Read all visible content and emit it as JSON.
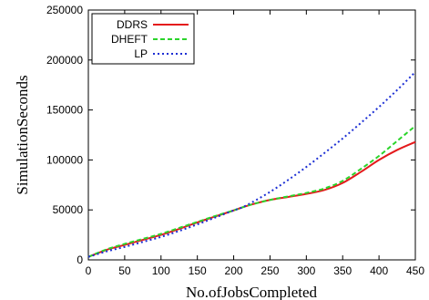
{
  "chart_data": {
    "type": "line",
    "title": "",
    "xlabel": "No.ofJobsCompleted",
    "ylabel": "SimulationSeconds",
    "xlim": [
      0,
      450
    ],
    "ylim": [
      0,
      250000
    ],
    "xticks": [
      "0",
      "50",
      "100",
      "150",
      "200",
      "250",
      "300",
      "350",
      "400",
      "450"
    ],
    "yticks": [
      "0",
      "50000",
      "100000",
      "150000",
      "200000",
      "250000"
    ],
    "grid": false,
    "legend_position": "top-left",
    "x": [
      0,
      25,
      50,
      75,
      100,
      125,
      150,
      175,
      200,
      210,
      225,
      250,
      275,
      300,
      325,
      350,
      375,
      400,
      425,
      450
    ],
    "series": [
      {
        "name": "DDRS",
        "color": "#e41a1c",
        "style": "solid",
        "values": [
          3000,
          10000,
          15000,
          20000,
          25000,
          31000,
          37500,
          43500,
          49500,
          52000,
          55500,
          60000,
          63000,
          66000,
          70000,
          77000,
          88000,
          100000,
          110000,
          118000
        ]
      },
      {
        "name": "DHEFT",
        "color": "#2bd42b",
        "style": "dashed",
        "values": [
          3000,
          10500,
          16000,
          21000,
          26000,
          32000,
          38000,
          44000,
          49500,
          52000,
          55500,
          60000,
          63500,
          67000,
          71500,
          79000,
          91000,
          104000,
          119000,
          134000
        ]
      },
      {
        "name": "LP",
        "color": "#1c2fd4",
        "style": "dotted",
        "values": [
          3000,
          8500,
          13000,
          18000,
          23000,
          29000,
          35500,
          42500,
          49500,
          52000,
          57500,
          68000,
          80000,
          93000,
          107000,
          121500,
          137000,
          153000,
          170000,
          188000
        ]
      }
    ]
  }
}
